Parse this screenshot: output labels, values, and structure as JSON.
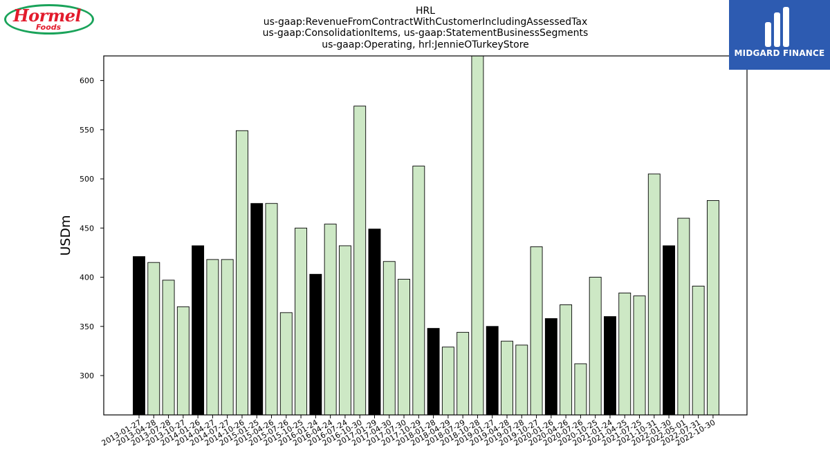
{
  "chart_data": {
    "type": "bar",
    "title_lines": [
      "HRL",
      "us-gaap:RevenueFromContractWithCustomerIncludingAssessedTax",
      "us-gaap:ConsolidationItems, us-gaap:StatementBusinessSegments",
      "us-gaap:Operating, hrl:JennieOTurkeyStore"
    ],
    "ylabel": "USDm",
    "xlabel": "",
    "ylim": [
      260,
      625
    ],
    "yticks": [
      300,
      350,
      400,
      450,
      500,
      550,
      600
    ],
    "grid": false,
    "legend": "none",
    "colors": {
      "annual": "#000000",
      "quarter": "#cde8c5",
      "edge": "#000000"
    },
    "categories": [
      "2013-01-27",
      "2013-04-28",
      "2013-07-28",
      "2013-10-27",
      "2014-01-26",
      "2014-04-27",
      "2014-07-27",
      "2014-10-26",
      "2015-01-25",
      "2015-04-26",
      "2015-07-26",
      "2015-10-25",
      "2016-01-24",
      "2016-04-24",
      "2016-07-24",
      "2016-10-30",
      "2017-01-29",
      "2017-04-30",
      "2017-07-30",
      "2017-10-29",
      "2018-01-28",
      "2018-04-29",
      "2018-07-29",
      "2018-10-28",
      "2019-01-27",
      "2019-04-28",
      "2019-07-28",
      "2019-10-27",
      "2020-01-26",
      "2020-04-26",
      "2020-07-26",
      "2020-10-25",
      "2021-01-24",
      "2021-04-25",
      "2021-07-25",
      "2021-10-31",
      "2022-01-30",
      "2022-05-01",
      "2022-07-31",
      "2022-10-30"
    ],
    "values": [
      421,
      415,
      397,
      370,
      432,
      418,
      418,
      549,
      475,
      475,
      364,
      450,
      403,
      454,
      432,
      574,
      449,
      416,
      398,
      513,
      348,
      329,
      344,
      630,
      350,
      335,
      331,
      431,
      358,
      372,
      312,
      400,
      360,
      384,
      381,
      505,
      432,
      460,
      391,
      478
    ],
    "highlight": [
      true,
      false,
      false,
      false,
      true,
      false,
      false,
      false,
      true,
      false,
      false,
      false,
      true,
      false,
      false,
      false,
      true,
      false,
      false,
      false,
      true,
      false,
      false,
      false,
      true,
      false,
      false,
      false,
      true,
      false,
      false,
      false,
      true,
      false,
      false,
      false,
      true,
      false,
      false,
      false
    ]
  },
  "logos": {
    "left": {
      "brand": "Hormel",
      "sub": "Foods"
    },
    "right": {
      "name": "MIDGARD FINANCE"
    }
  }
}
